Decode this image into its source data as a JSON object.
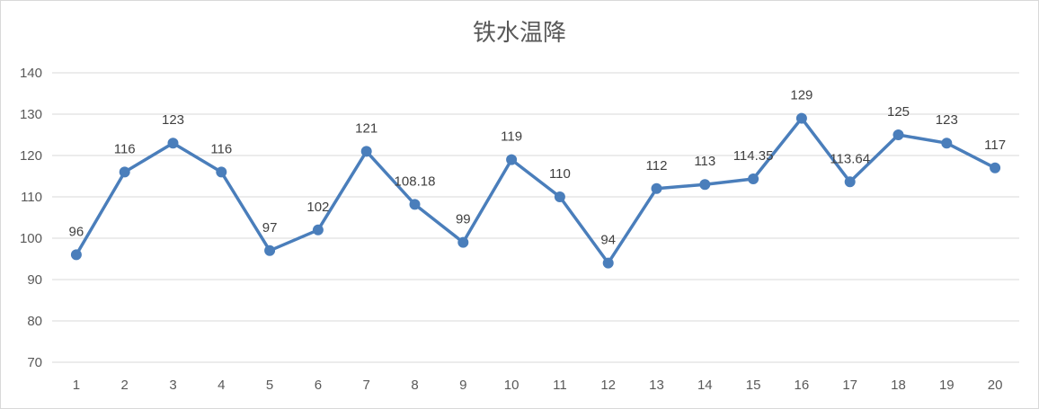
{
  "chart_data": {
    "type": "line",
    "title": "铁水温降",
    "xlabel": "",
    "ylabel": "",
    "categories": [
      "1",
      "2",
      "3",
      "4",
      "5",
      "6",
      "7",
      "8",
      "9",
      "10",
      "11",
      "12",
      "13",
      "14",
      "15",
      "16",
      "17",
      "18",
      "19",
      "20"
    ],
    "series": [
      {
        "values": [
          96,
          116,
          123,
          116,
          97,
          102,
          121,
          108.18,
          99,
          119,
          110,
          94,
          112,
          113,
          114.35,
          129,
          113.64,
          125,
          123,
          117
        ],
        "labels": [
          "96",
          "116",
          "123",
          "116",
          "97",
          "102",
          "121",
          "108.18",
          "99",
          "119",
          "110",
          "94",
          "112",
          "113",
          "114.35",
          "129",
          "113.64",
          "125",
          "123",
          "117"
        ],
        "color": "#4a7ebb"
      }
    ],
    "ylim": [
      70,
      140
    ],
    "yticks": [
      "70",
      "80",
      "90",
      "100",
      "110",
      "120",
      "130",
      "140"
    ],
    "grid": true,
    "legend": "none"
  }
}
